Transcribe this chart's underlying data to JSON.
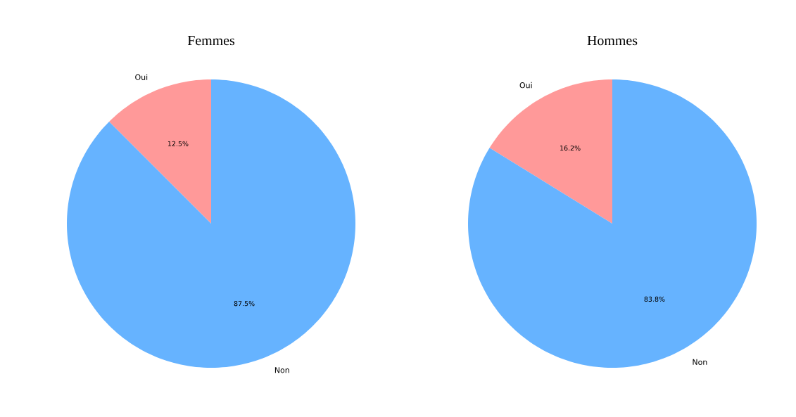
{
  "chart_data": [
    {
      "type": "pie",
      "title": "Femmes",
      "categories": [
        "Oui",
        "Non"
      ],
      "values": [
        12.5,
        87.5
      ],
      "colors": [
        "#ff9999",
        "#66b3ff"
      ],
      "value_labels": [
        "12.5%",
        "87.5%"
      ]
    },
    {
      "type": "pie",
      "title": "Hommes",
      "categories": [
        "Oui",
        "Non"
      ],
      "values": [
        16.2,
        83.8
      ],
      "colors": [
        "#ff9999",
        "#66b3ff"
      ],
      "value_labels": [
        "16.2%",
        "83.8%"
      ]
    }
  ]
}
